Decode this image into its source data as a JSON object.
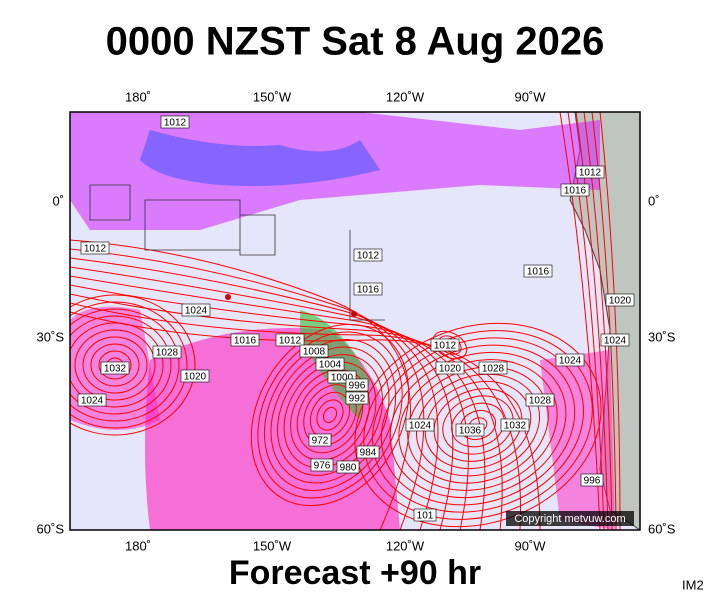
{
  "title": "0000 NZST Sat 8 Aug 2026",
  "footer": "Forecast +90 hr",
  "corner_label": "IM2",
  "copyright": "Copyright metvuw.com",
  "longitude_labels": [
    "180˚",
    "150˚W",
    "120˚W",
    "90˚W"
  ],
  "latitude_labels": [
    "0˚",
    "30˚S",
    "60˚S"
  ],
  "isobar_labels": [
    "1012",
    "1012",
    "1012",
    "1016",
    "1016",
    "1024",
    "1016",
    "1012",
    "1008",
    "1004",
    "1000",
    "1032",
    "1028",
    "1020",
    "1024",
    "1012",
    "1020",
    "1028",
    "1024",
    "1036",
    "1032",
    "1028",
    "1024",
    "972",
    "976",
    "980",
    "984",
    "996",
    "992",
    "1016",
    "1012",
    "1020",
    "1024",
    "996",
    "101"
  ]
}
